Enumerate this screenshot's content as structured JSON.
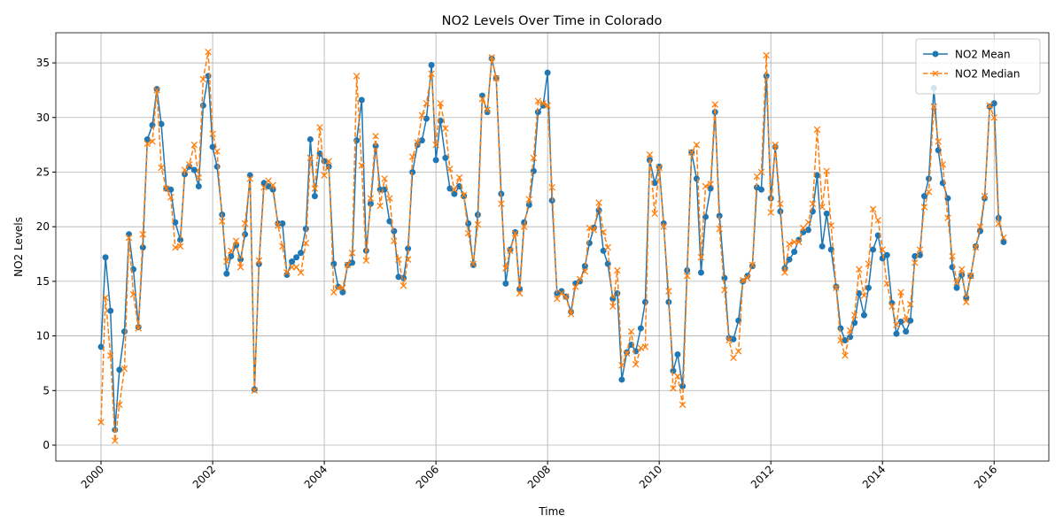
{
  "chart_data": {
    "type": "line",
    "title": "NO2 Levels Over Time in Colorado",
    "xlabel": "Time",
    "ylabel": "NO2 Levels",
    "x": [
      2000.0,
      2000.08,
      2000.17,
      2000.25,
      2000.33,
      2000.42,
      2000.5,
      2000.58,
      2000.67,
      2000.75,
      2000.83,
      2000.92,
      2001.0,
      2001.08,
      2001.17,
      2001.25,
      2001.33,
      2001.42,
      2001.5,
      2001.58,
      2001.67,
      2001.75,
      2001.83,
      2001.92,
      2002.0,
      2002.08,
      2002.17,
      2002.25,
      2002.33,
      2002.42,
      2002.5,
      2002.58,
      2002.67,
      2002.75,
      2002.83,
      2002.92,
      2003.0,
      2003.08,
      2003.17,
      2003.25,
      2003.33,
      2003.42,
      2003.5,
      2003.58,
      2003.67,
      2003.75,
      2003.83,
      2003.92,
      2004.0,
      2004.08,
      2004.17,
      2004.25,
      2004.33,
      2004.42,
      2004.5,
      2004.58,
      2004.67,
      2004.75,
      2004.83,
      2004.92,
      2005.0,
      2005.08,
      2005.17,
      2005.25,
      2005.33,
      2005.42,
      2005.5,
      2005.58,
      2005.67,
      2005.75,
      2005.83,
      2005.92,
      2006.0,
      2006.08,
      2006.17,
      2006.25,
      2006.33,
      2006.42,
      2006.5,
      2006.58,
      2006.67,
      2006.75,
      2006.83,
      2006.92,
      2007.0,
      2007.08,
      2007.17,
      2007.25,
      2007.33,
      2007.42,
      2007.5,
      2007.58,
      2007.67,
      2007.75,
      2007.83,
      2007.92,
      2008.0,
      2008.08,
      2008.17,
      2008.25,
      2008.33,
      2008.42,
      2008.5,
      2008.58,
      2008.67,
      2008.75,
      2008.83,
      2008.92,
      2009.0,
      2009.08,
      2009.17,
      2009.25,
      2009.33,
      2009.42,
      2009.5,
      2009.58,
      2009.67,
      2009.75,
      2009.83,
      2009.92,
      2010.0,
      2010.08,
      2010.17,
      2010.25,
      2010.33,
      2010.42,
      2010.5,
      2010.58,
      2010.67,
      2010.75,
      2010.83,
      2010.92,
      2011.0,
      2011.08,
      2011.17,
      2011.25,
      2011.33,
      2011.42,
      2011.5,
      2011.58,
      2011.67,
      2011.75,
      2011.83,
      2011.92,
      2012.0,
      2012.08,
      2012.17,
      2012.25,
      2012.33,
      2012.42,
      2012.5,
      2012.58,
      2012.67,
      2012.75,
      2012.83,
      2012.92,
      2013.0,
      2013.08,
      2013.17,
      2013.25,
      2013.33,
      2013.42,
      2013.5,
      2013.58,
      2013.67,
      2013.75,
      2013.83,
      2013.92,
      2014.0,
      2014.08,
      2014.17,
      2014.25,
      2014.33,
      2014.42,
      2014.5,
      2014.58,
      2014.67,
      2014.75,
      2014.83,
      2014.92,
      2015.0,
      2015.08,
      2015.17,
      2015.25,
      2015.33,
      2015.42,
      2015.5,
      2015.58,
      2015.67,
      2015.75,
      2015.83,
      2015.92,
      2016.0,
      2016.08,
      2016.17
    ],
    "series": [
      {
        "name": "NO2 Mean",
        "color": "#1f77b4",
        "linestyle": "solid",
        "marker": "circle",
        "values": [
          9.0,
          17.2,
          12.3,
          1.4,
          6.9,
          10.4,
          19.3,
          16.1,
          10.8,
          18.1,
          28.0,
          29.3,
          32.6,
          29.4,
          23.5,
          23.4,
          20.4,
          18.8,
          24.8,
          25.5,
          25.2,
          23.7,
          31.1,
          33.8,
          27.3,
          25.5,
          21.1,
          15.7,
          17.3,
          18.3,
          17.0,
          19.3,
          24.7,
          5.1,
          16.6,
          24.0,
          23.7,
          23.4,
          20.3,
          20.3,
          15.6,
          16.8,
          17.2,
          17.6,
          19.8,
          28.0,
          22.8,
          26.7,
          26.0,
          25.5,
          16.6,
          14.5,
          14.0,
          16.5,
          16.7,
          27.9,
          31.6,
          17.8,
          22.1,
          27.4,
          23.4,
          23.4,
          20.5,
          19.6,
          15.4,
          15.3,
          18.0,
          25.0,
          27.5,
          27.9,
          29.9,
          34.8,
          26.1,
          29.7,
          26.3,
          23.5,
          23.0,
          23.7,
          22.8,
          20.3,
          16.5,
          21.1,
          32.0,
          30.5,
          35.4,
          33.6,
          23.0,
          14.8,
          17.9,
          19.5,
          14.3,
          20.4,
          22.0,
          25.1,
          30.5,
          31.1,
          34.1,
          22.4,
          13.9,
          14.1,
          13.6,
          12.2,
          14.8,
          15.0,
          16.4,
          18.5,
          19.9,
          21.5,
          17.8,
          16.6,
          13.4,
          13.9,
          6.0,
          8.5,
          9.2,
          8.6,
          10.7,
          13.1,
          26.1,
          24.0,
          25.5,
          20.3,
          13.1,
          6.8,
          8.3,
          5.4,
          16.0,
          26.8,
          24.4,
          15.8,
          20.9,
          23.5,
          30.5,
          21.0,
          15.3,
          9.8,
          9.7,
          11.4,
          15.0,
          15.5,
          16.4,
          23.6,
          23.4,
          33.8,
          22.6,
          27.3,
          21.4,
          16.2,
          17.0,
          17.7,
          18.8,
          19.5,
          19.7,
          21.4,
          24.7,
          18.2,
          21.2,
          17.9,
          14.5,
          10.7,
          9.6,
          9.9,
          11.2,
          13.9,
          11.9,
          14.4,
          17.9,
          19.2,
          17.1,
          17.4,
          13.0,
          10.2,
          11.3,
          10.4,
          11.4,
          17.3,
          17.4,
          22.8,
          24.4,
          32.7,
          27.0,
          24.0,
          22.6,
          16.3,
          14.4,
          15.6,
          13.5,
          15.5,
          18.2,
          19.6,
          22.6,
          31.0,
          31.3,
          20.8,
          18.6
        ]
      },
      {
        "name": "NO2 Median",
        "color": "#ff7f0e",
        "linestyle": "dashed",
        "marker": "x",
        "values": [
          2.1,
          13.5,
          8.2,
          0.4,
          3.7,
          7.0,
          19.0,
          13.8,
          10.7,
          19.3,
          27.6,
          27.8,
          32.5,
          25.4,
          23.5,
          22.7,
          18.1,
          18.2,
          25.2,
          25.7,
          27.5,
          24.5,
          33.5,
          36.0,
          28.5,
          26.9,
          20.5,
          16.8,
          17.8,
          18.7,
          16.3,
          20.3,
          24.4,
          5.0,
          16.9,
          23.6,
          24.2,
          23.8,
          20.1,
          18.2,
          15.8,
          16.3,
          16.3,
          15.8,
          18.5,
          26.3,
          23.5,
          29.1,
          24.7,
          26.0,
          14.0,
          14.4,
          14.4,
          16.5,
          17.6,
          33.8,
          25.6,
          16.9,
          22.6,
          28.3,
          21.9,
          24.4,
          22.6,
          18.7,
          17.0,
          14.6,
          17.0,
          26.4,
          27.7,
          30.2,
          31.3,
          34.0,
          27.5,
          31.3,
          29.0,
          25.3,
          23.4,
          24.5,
          22.9,
          19.4,
          16.6,
          20.2,
          31.7,
          30.7,
          35.5,
          33.6,
          22.1,
          16.2,
          17.8,
          19.4,
          13.9,
          20.0,
          22.5,
          26.3,
          31.5,
          31.3,
          31.1,
          23.6,
          13.4,
          13.9,
          13.6,
          12.0,
          14.5,
          15.2,
          15.9,
          19.9,
          19.7,
          22.2,
          19.5,
          18.1,
          12.7,
          16.0,
          7.3,
          8.4,
          10.4,
          7.4,
          8.9,
          9.0,
          26.6,
          21.2,
          25.4,
          20.0,
          14.1,
          5.2,
          6.3,
          3.7,
          15.5,
          26.8,
          27.5,
          17.2,
          23.7,
          23.9,
          31.2,
          19.8,
          14.2,
          9.6,
          8.0,
          8.6,
          15.1,
          15.3,
          16.5,
          24.6,
          25.0,
          35.7,
          21.3,
          27.5,
          22.1,
          15.8,
          18.4,
          18.6,
          18.6,
          19.9,
          20.4,
          22.1,
          28.9,
          21.8,
          25.1,
          20.1,
          14.4,
          9.6,
          8.2,
          10.5,
          11.9,
          16.1,
          13.7,
          16.6,
          21.6,
          20.6,
          17.9,
          14.8,
          12.7,
          11.0,
          14.0,
          11.4,
          12.9,
          16.7,
          17.9,
          21.8,
          23.2,
          31.0,
          27.8,
          25.7,
          20.8,
          17.3,
          14.9,
          16.1,
          13.1,
          15.5,
          18.1,
          20.0,
          22.8,
          31.1,
          30.0,
          20.3,
          19.0
        ]
      }
    ],
    "xlim": [
      1999.19,
      2016.98
    ],
    "xticks": [
      2000,
      2002,
      2004,
      2006,
      2008,
      2010,
      2012,
      2014,
      2016
    ],
    "ylim": [
      -1.46,
      37.76
    ],
    "yticks": [
      0,
      5,
      10,
      15,
      20,
      25,
      30,
      35
    ],
    "grid": true,
    "legend": "upper right"
  }
}
